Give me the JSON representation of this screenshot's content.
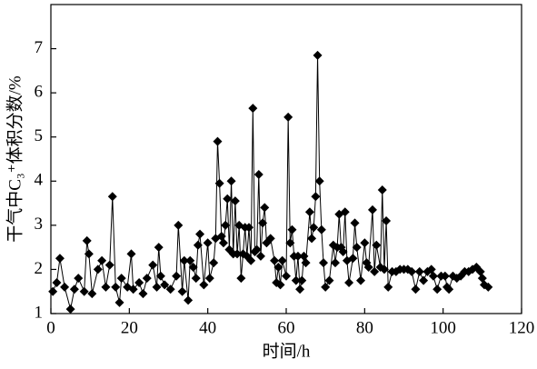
{
  "chart_data": {
    "type": "line",
    "xlabel": "时间/h",
    "ylabel": "干气中C₃⁺体积分数/%",
    "xlim": [
      0,
      120
    ],
    "xticks": [
      0,
      20,
      40,
      60,
      80,
      100,
      120
    ],
    "ylim": [
      1,
      8
    ],
    "yticks": [
      1,
      2,
      3,
      4,
      5,
      6,
      7
    ],
    "x": [
      0.5,
      1.5,
      2.3,
      3.5,
      5,
      6,
      7,
      8.5,
      9.2,
      9.7,
      10.5,
      12,
      13,
      14,
      15,
      15.7,
      16.5,
      17.5,
      18,
      19.5,
      20.5,
      21,
      22.5,
      23.5,
      24.5,
      26,
      27,
      27.5,
      28,
      29,
      30.5,
      32,
      32.5,
      33.5,
      34,
      35,
      35.5,
      36.3,
      37,
      37.5,
      38,
      39,
      40,
      40.5,
      41.5,
      42,
      42.5,
      43,
      43.5,
      44,
      44.5,
      45,
      45.5,
      46,
      46.5,
      47,
      47.5,
      48,
      48.5,
      49,
      49.5,
      50,
      50.5,
      51,
      51.5,
      52,
      52.5,
      53,
      53.5,
      54,
      54.5,
      55,
      56,
      57,
      57.5,
      58,
      58.5,
      59,
      60,
      60.5,
      61,
      61.5,
      62,
      62.5,
      63,
      63.5,
      64,
      64.5,
      65,
      66,
      66.5,
      67,
      67.5,
      68,
      68.5,
      69,
      69.5,
      70,
      71,
      72,
      72.5,
      73,
      73.5,
      74,
      74.5,
      75,
      75.5,
      76,
      77,
      77.5,
      78,
      79,
      80,
      80.5,
      81,
      82,
      82.5,
      83,
      84,
      84.5,
      85,
      85.5,
      86,
      87,
      88,
      89,
      90,
      91,
      92,
      93,
      94,
      95,
      96,
      97,
      97.5,
      98.5,
      99.5,
      100.5,
      101,
      101.5,
      102.5,
      103.5,
      104.5,
      105.5,
      106.5,
      107.5,
      108.5,
      109.5,
      110,
      110.5,
      111.5
    ],
    "series": [
      {
        "color": "#000000",
        "marker": "diamond",
        "values": [
          1.5,
          1.7,
          2.25,
          1.6,
          1.1,
          1.55,
          1.8,
          1.5,
          2.65,
          2.35,
          1.45,
          2.0,
          2.2,
          1.6,
          2.1,
          3.65,
          1.6,
          1.25,
          1.8,
          1.6,
          2.35,
          1.55,
          1.7,
          1.45,
          1.8,
          2.1,
          1.6,
          2.5,
          1.85,
          1.65,
          1.55,
          1.85,
          3.0,
          1.5,
          2.2,
          1.3,
          2.2,
          2.05,
          1.8,
          2.55,
          2.8,
          1.65,
          2.6,
          1.8,
          2.15,
          2.7,
          4.9,
          3.95,
          2.75,
          2.6,
          3.0,
          3.6,
          2.45,
          4.0,
          2.35,
          3.55,
          2.35,
          3.0,
          1.8,
          2.35,
          2.95,
          2.3,
          2.95,
          2.2,
          5.65,
          2.4,
          2.45,
          4.15,
          2.3,
          3.05,
          3.4,
          2.6,
          2.7,
          2.2,
          1.7,
          2.05,
          1.65,
          2.2,
          1.85,
          5.45,
          2.6,
          2.9,
          2.3,
          1.75,
          2.3,
          1.55,
          1.75,
          2.3,
          2.15,
          3.3,
          2.7,
          2.95,
          3.65,
          6.85,
          4.0,
          2.9,
          2.15,
          1.6,
          1.75,
          2.55,
          2.15,
          2.5,
          3.25,
          2.5,
          2.4,
          3.3,
          2.2,
          1.7,
          2.25,
          3.05,
          2.5,
          1.75,
          2.6,
          2.15,
          2.05,
          3.35,
          1.95,
          2.55,
          2.05,
          3.8,
          2.0,
          3.1,
          1.6,
          1.95,
          1.95,
          2.0,
          2.0,
          2.0,
          1.95,
          1.55,
          1.95,
          1.75,
          1.95,
          2.0,
          1.85,
          1.55,
          1.85,
          1.85,
          1.6,
          1.55,
          1.85,
          1.8,
          1.85,
          1.95,
          1.95,
          2.0,
          2.05,
          1.95,
          1.8,
          1.65,
          1.6
        ]
      }
    ]
  }
}
